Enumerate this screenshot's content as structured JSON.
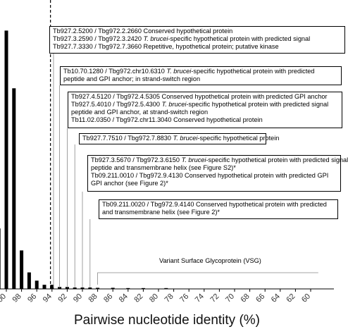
{
  "chart_data": {
    "type": "bar",
    "xlabel": "Pairwise nucleotide identity (%)",
    "ylabel": "",
    "title": "",
    "x_axis": {
      "reversed": true,
      "xlim": [
        100.9,
        58.9
      ],
      "tick_values": [
        100,
        98,
        96,
        94,
        92,
        90,
        88,
        86,
        84,
        82,
        80,
        78,
        76,
        74,
        72,
        70,
        68,
        66,
        64,
        62,
        60
      ]
    },
    "tick_labels": [
      "100",
      "98",
      "96",
      "94",
      "92",
      "90",
      "88",
      "86",
      "84",
      "82",
      "80",
      "78",
      "76",
      "74",
      "72",
      "70",
      "68",
      "66",
      "64",
      "62",
      "60"
    ],
    "ylim": [
      0,
      100
    ],
    "bars": [
      {
        "x": 101,
        "value": 22
      },
      {
        "x": 100,
        "value": 94
      },
      {
        "x": 99,
        "value": 73
      },
      {
        "x": 98,
        "value": 14
      },
      {
        "x": 97,
        "value": 6
      },
      {
        "x": 96,
        "value": 3
      },
      {
        "x": 95,
        "value": 1.5
      },
      {
        "x": 94,
        "value": 1.5
      },
      {
        "x": 93,
        "value": 0.7
      },
      {
        "x": 92,
        "value": 0.7
      },
      {
        "x": 91,
        "value": 0.5
      },
      {
        "x": 90,
        "value": 0.5
      },
      {
        "x": 89,
        "value": 0.5
      },
      {
        "x": 88,
        "value": 0.4
      },
      {
        "x": 86,
        "value": 0.4
      },
      {
        "x": 84,
        "value": 0.3
      },
      {
        "x": 82,
        "value": 0.3
      },
      {
        "x": 79,
        "value": 0.3
      }
    ],
    "threshold_x": 94.2,
    "annotations": [
      {
        "x": 93.8,
        "lines": [
          {
            "parts": [
              {
                "t": "Tb927.2.5200 / Tbg972.2.2660  Conserved hypothetical protein"
              }
            ]
          },
          {
            "parts": [
              {
                "t": "Tb927.3.2590 / Tbg972.3.2420  "
              },
              {
                "t": "T. brucei",
                "i": true
              },
              {
                "t": "-specific hypothetical protein with predicted signal"
              }
            ]
          },
          {
            "parts": [
              {
                "t": "Tb927.7.3330 / Tbg972.7.3660  Repetitive, hypothetical protein; putative kinase"
              }
            ]
          }
        ]
      },
      {
        "x": 93.0,
        "lines": [
          {
            "parts": [
              {
                "t": "Tb10.70.1280 / Tbg972.chr10.6310  "
              },
              {
                "t": "T. brucei",
                "i": true
              },
              {
                "t": "-specific hypothetical protein with predicted"
              }
            ]
          },
          {
            "parts": [
              {
                "t": "peptide and GPI anchor; in strand-switch region"
              }
            ]
          }
        ]
      },
      {
        "x": 92.0,
        "lines": [
          {
            "parts": [
              {
                "t": "Tb927.4.5120 / Tbg972.4.5305  Conserved hypothetical protein with predicted GPI anchor"
              }
            ]
          },
          {
            "parts": [
              {
                "t": "Tb927.5.4010 / Tbg972.5.4300  "
              },
              {
                "t": "T. brucei",
                "i": true
              },
              {
                "t": "-specific hypothetical protein with predicted signal"
              }
            ]
          },
          {
            "parts": [
              {
                "t": "peptide and GPI anchor, at strand-switch region"
              }
            ]
          },
          {
            "parts": [
              {
                "t": "Tb11.02.0350 / Tbg972.chr11.3040  Conserved hypothetical protein"
              }
            ]
          }
        ]
      },
      {
        "x": 91.0,
        "lines": [
          {
            "parts": [
              {
                "t": "Tb927.7.7510 / Tbg972.7.8830  "
              },
              {
                "t": "T. brucei",
                "i": true
              },
              {
                "t": "-specific hypothetical protein"
              }
            ]
          }
        ]
      },
      {
        "x": 90.0,
        "lines": [
          {
            "parts": [
              {
                "t": "Tb927.3.5670 / Tbg972.3.6150  "
              },
              {
                "t": "T. brucei",
                "i": true
              },
              {
                "t": "-specific hypothetical protein with predicted signal"
              }
            ]
          },
          {
            "parts": [
              {
                "t": "peptide and transmembrane helix (see Figure S2)*"
              }
            ]
          },
          {
            "parts": [
              {
                "t": "Tb09.211.0010 / Tbg972.9.4130  Conserved hypothetical protein with predicted GPI"
              }
            ]
          },
          {
            "parts": [
              {
                "t": "GPI anchor (see Figure 2)*"
              }
            ]
          }
        ]
      },
      {
        "x": 89.0,
        "lines": [
          {
            "parts": [
              {
                "t": "Tb09.211.0020 / Tbg972.9.4140  Conserved hypothetical protein with predicted"
              }
            ]
          },
          {
            "parts": [
              {
                "t": "and transmembrane helix (see Figure 2)*"
              }
            ]
          }
        ]
      },
      {
        "x_range": [
          88.0,
          59.0
        ],
        "lines": [
          {
            "parts": [
              {
                "t": "Variant Surface Glycoprotein (VSG)"
              }
            ]
          }
        ]
      }
    ]
  }
}
